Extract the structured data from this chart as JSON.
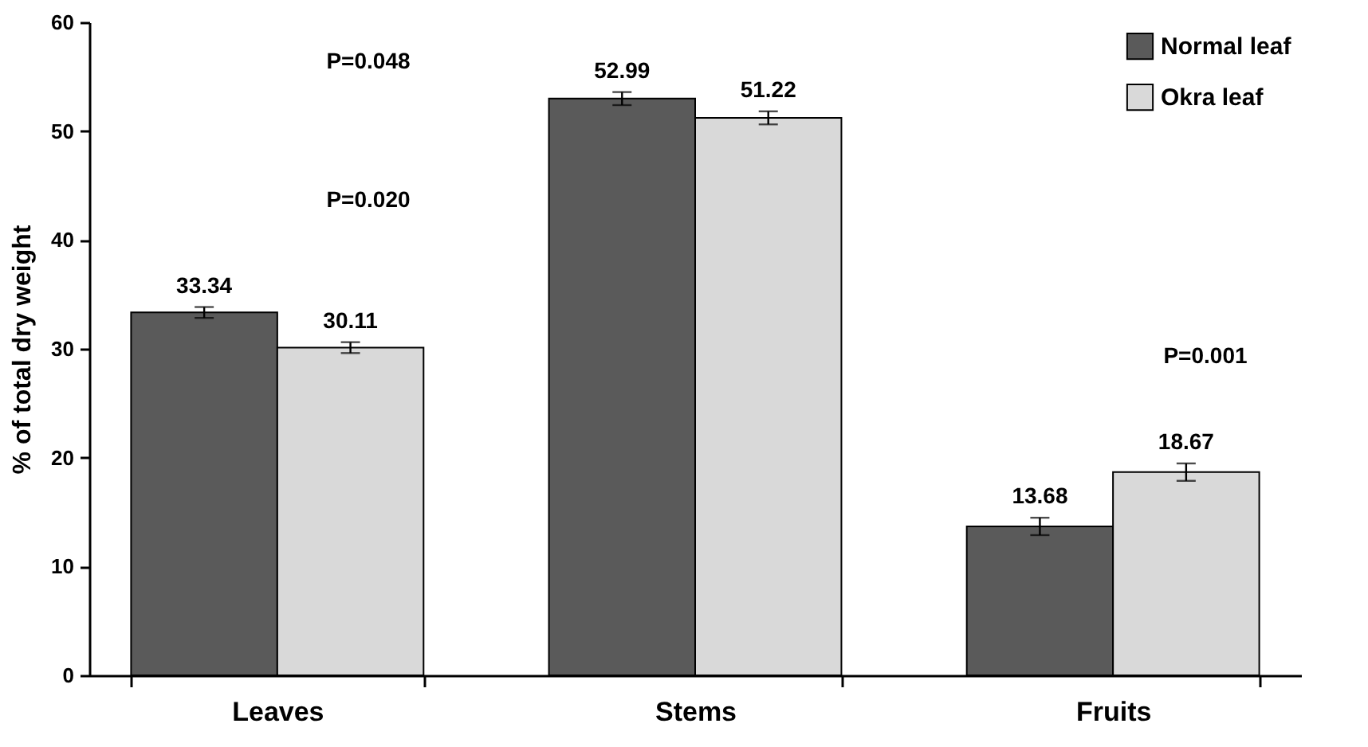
{
  "chart_data": {
    "type": "bar",
    "ylabel": "% of total dry weight",
    "categories": [
      "Leaves",
      "Stems",
      "Fruits"
    ],
    "series": [
      {
        "name": "Normal leaf",
        "color": "#5a5a5a",
        "values": [
          33.34,
          52.99,
          13.68
        ],
        "errors": [
          0.5,
          0.6,
          0.8
        ]
      },
      {
        "name": "Okra leaf",
        "color": "#d9d9d9",
        "values": [
          30.11,
          51.22,
          18.67
        ],
        "errors": [
          0.5,
          0.6,
          0.8
        ]
      }
    ],
    "data_labels": true,
    "ylim": [
      0,
      60
    ],
    "yticks": [
      0,
      10,
      20,
      30,
      40,
      50,
      60
    ],
    "grid": false,
    "legend": "top right",
    "annotations": [
      "P=0.048",
      "P=0.020",
      "P=0.001"
    ]
  }
}
